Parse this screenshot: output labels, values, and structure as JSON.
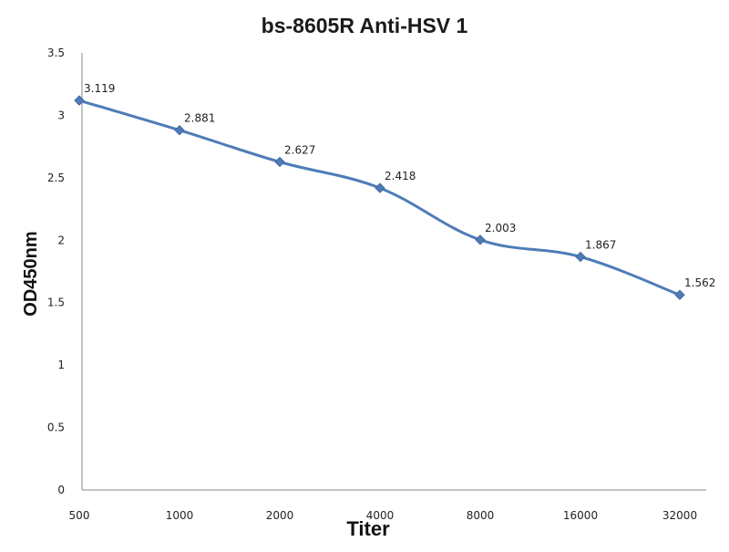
{
  "chart_data": {
    "type": "line",
    "title": "bs-8605R Anti-HSV 1",
    "xlabel": "Titer",
    "ylabel": "OD450nm",
    "categories": [
      "500",
      "1000",
      "2000",
      "4000",
      "8000",
      "16000",
      "32000"
    ],
    "y_ticks": [
      "0",
      "0.5",
      "1",
      "1.5",
      "2",
      "2.5",
      "3",
      "3.5"
    ],
    "ylim": [
      0,
      3.5
    ],
    "grid": false,
    "legend": "none",
    "series": [
      {
        "values": [
          3.119,
          2.881,
          2.627,
          2.418,
          2.003,
          1.867,
          1.562
        ],
        "labels": [
          "3.119",
          "2.881",
          "2.627",
          "2.418",
          "2.003",
          "1.867",
          "1.562"
        ],
        "color": "#4f7cb8"
      }
    ]
  }
}
